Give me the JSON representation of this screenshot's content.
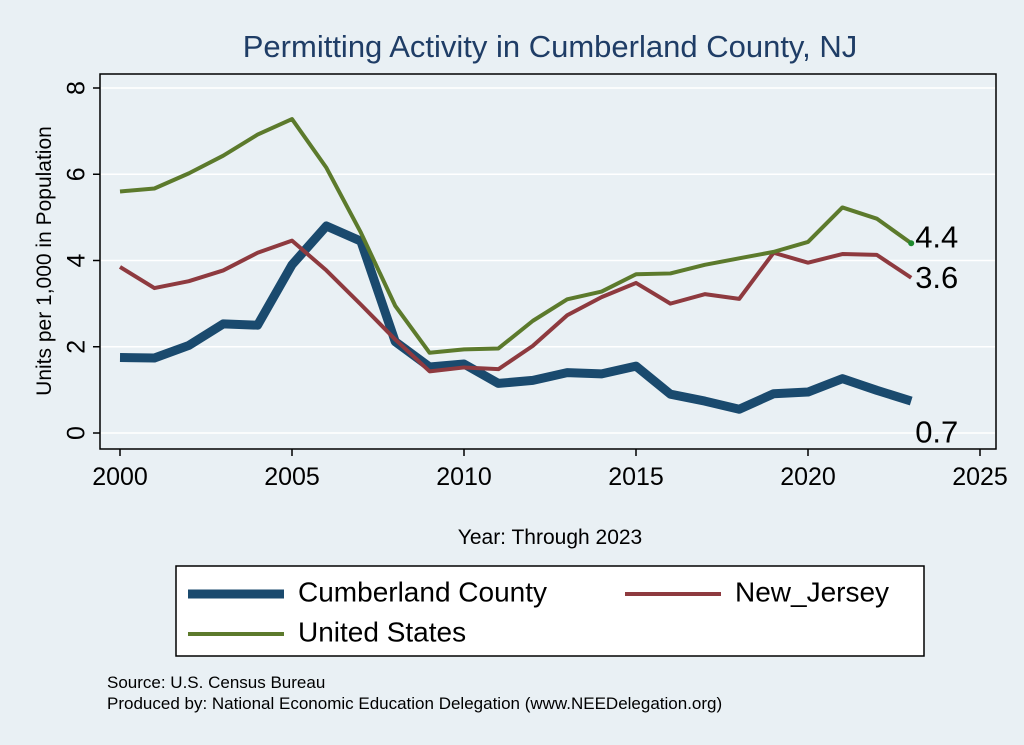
{
  "chart_data": {
    "type": "line",
    "title": "Permitting Activity in Cumberland County, NJ",
    "xlabel": "Year: Through 2023",
    "ylabel": "Units per 1,000 in Population",
    "xlim": [
      2000,
      2025
    ],
    "ylim": [
      0,
      8
    ],
    "xticks": [
      "2000",
      "2005",
      "2010",
      "2015",
      "2020",
      "2025"
    ],
    "yticks": [
      "0",
      "2",
      "4",
      "6",
      "8"
    ],
    "grid": true,
    "legend_position": "bottom",
    "x": [
      2000,
      2001,
      2002,
      2003,
      2004,
      2005,
      2006,
      2007,
      2008,
      2009,
      2010,
      2011,
      2012,
      2013,
      2014,
      2015,
      2016,
      2017,
      2018,
      2019,
      2020,
      2021,
      2022,
      2023
    ],
    "series": [
      {
        "name": "Cumberland County",
        "color": "#1a4a6e",
        "width": 9,
        "values": [
          1.75,
          1.74,
          2.03,
          2.53,
          2.5,
          3.9,
          4.8,
          4.45,
          2.12,
          1.53,
          1.6,
          1.15,
          1.22,
          1.4,
          1.37,
          1.55,
          0.9,
          0.74,
          0.55,
          0.91,
          0.95,
          1.26,
          0.99,
          0.74
        ],
        "end_label": "0.7"
      },
      {
        "name": "New_Jersey",
        "color": "#8e3a3f",
        "width": 4,
        "values": [
          3.85,
          3.36,
          3.52,
          3.77,
          4.18,
          4.46,
          3.77,
          2.98,
          2.17,
          1.43,
          1.52,
          1.48,
          2.02,
          2.73,
          3.15,
          3.48,
          3.0,
          3.22,
          3.11,
          4.18,
          3.95,
          4.15,
          4.13,
          3.6
        ],
        "end_label": "3.6"
      },
      {
        "name": "United States",
        "color": "#5c7a2c",
        "width": 4,
        "values": [
          5.6,
          5.67,
          6.02,
          6.43,
          6.92,
          7.28,
          6.15,
          4.65,
          2.95,
          1.86,
          1.94,
          1.96,
          2.6,
          3.1,
          3.28,
          3.68,
          3.7,
          3.9,
          4.05,
          4.2,
          4.43,
          5.23,
          4.97,
          4.4
        ],
        "end_label": "4.4"
      }
    ]
  },
  "source_line": "Source: U.S. Census Bureau",
  "produced_line": "Produced by: National Economic Education Delegation (www.NEEDelegation.org)"
}
